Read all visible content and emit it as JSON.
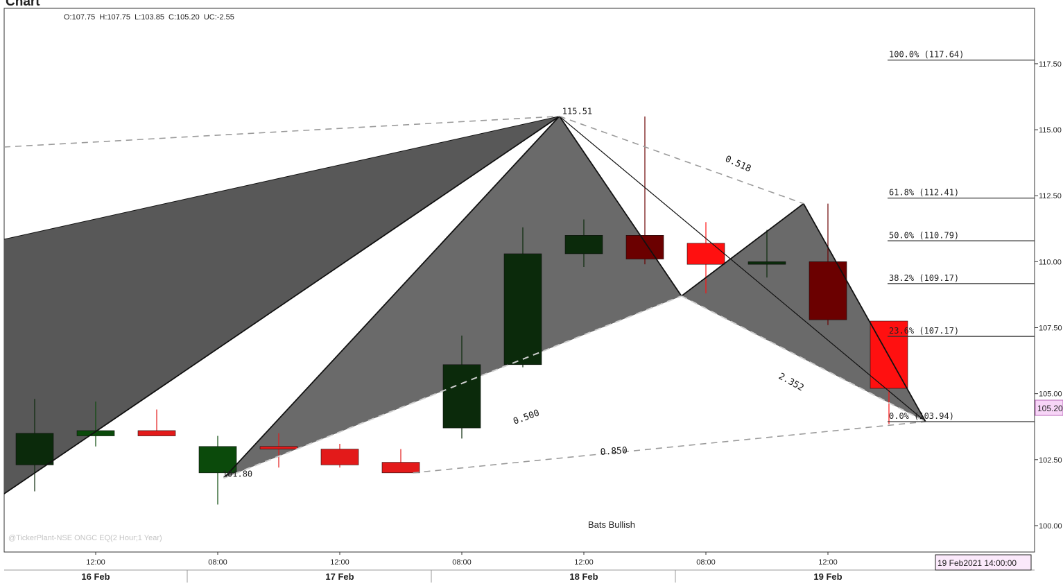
{
  "header": {
    "title": "Chart",
    "ohlc": "O:107.75  H:107.75  L:103.85  C:105.20  UC:-2.55"
  },
  "chart_data": {
    "type": "candlestick",
    "instrument_label": "@TickerPlant-NSE ONGC EQ(2 Hour;1 Year)",
    "pattern_label": "Bats Bullish",
    "current_price_label": "105.20",
    "date_box": "19 Feb2021 14:00:00",
    "ylim": [
      99.0,
      119.6
    ],
    "y_ticks": [
      "100.00",
      "102.50",
      "105.00",
      "107.50",
      "110.00",
      "112.50",
      "115.00",
      "117.50"
    ],
    "y_tick_values": [
      100,
      102.5,
      105,
      107.5,
      110,
      112.5,
      115,
      117.5
    ],
    "time_labels": [
      "12:00",
      "08:00",
      "12:00",
      "08:00",
      "12:00",
      "08:00",
      "12:00"
    ],
    "time_label_index": [
      1,
      3,
      5,
      7,
      9,
      11,
      13
    ],
    "day_labels": [
      "16 Feb",
      "17 Feb",
      "18 Feb",
      "19 Feb"
    ],
    "day_label_index": [
      1,
      5,
      9,
      13
    ],
    "day_separator_index": [
      2.5,
      6.5,
      10.5
    ],
    "candles": [
      {
        "o": 102.3,
        "h": 104.8,
        "l": 101.3,
        "c": 103.5,
        "color": "#0b2a0b"
      },
      {
        "o": 103.4,
        "h": 104.7,
        "l": 103.0,
        "c": 103.6,
        "color": "#0b4a0b"
      },
      {
        "o": 103.6,
        "h": 104.4,
        "l": 103.4,
        "c": 103.4,
        "color": "#e31a1a"
      },
      {
        "o": 102.0,
        "h": 103.4,
        "l": 100.8,
        "c": 103.0,
        "color": "#0b4a0b"
      },
      {
        "o": 103.0,
        "h": 103.5,
        "l": 102.2,
        "c": 102.9,
        "color": "#e31a1a"
      },
      {
        "o": 102.9,
        "h": 103.1,
        "l": 102.2,
        "c": 102.3,
        "color": "#e31a1a"
      },
      {
        "o": 102.4,
        "h": 102.9,
        "l": 102.0,
        "c": 102.0,
        "color": "#e31a1a"
      },
      {
        "o": 103.7,
        "h": 107.2,
        "l": 103.3,
        "c": 106.1,
        "color": "#0b2a0b"
      },
      {
        "o": 106.1,
        "h": 111.3,
        "l": 106.0,
        "c": 110.3,
        "color": "#0b2a0b"
      },
      {
        "o": 110.3,
        "h": 111.6,
        "l": 109.8,
        "c": 111.0,
        "color": "#0b2a0b"
      },
      {
        "o": 111.0,
        "h": 115.5,
        "l": 109.9,
        "c": 110.1,
        "color": "#6b0000"
      },
      {
        "o": 110.7,
        "h": 111.5,
        "l": 108.8,
        "c": 109.9,
        "color": "#ff1010"
      },
      {
        "o": 109.9,
        "h": 111.2,
        "l": 109.4,
        "c": 110.0,
        "color": "#0b2a0b"
      },
      {
        "o": 110.0,
        "h": 112.2,
        "l": 107.6,
        "c": 107.8,
        "color": "#6b0000"
      },
      {
        "o": 107.75,
        "h": 107.75,
        "l": 103.85,
        "c": 105.2,
        "color": "#ff1010"
      }
    ],
    "fib_levels": [
      {
        "label": "100.0% (117.64)",
        "value": 117.64
      },
      {
        "label": "61.8% (112.41)",
        "value": 112.41
      },
      {
        "label": "50.0% (110.79)",
        "value": 110.79
      },
      {
        "label": "38.2% (109.17)",
        "value": 109.17
      },
      {
        "label": "23.6% (107.17)",
        "value": 107.17
      },
      {
        "label": "0.0% (103.94)",
        "value": 103.94
      }
    ],
    "pattern_points": {
      "X": {
        "i": 3.1,
        "v": 101.8,
        "label": "101.80"
      },
      "A": {
        "i": 8.6,
        "v": 115.51,
        "label": "115.51"
      },
      "B": {
        "i": 10.6,
        "v": 108.7
      },
      "C": {
        "i": 12.6,
        "v": 112.2
      },
      "D": {
        "i": 14.6,
        "v": 103.94
      }
    },
    "ratios": [
      {
        "label": "0.518"
      },
      {
        "label": "0.500"
      },
      {
        "label": "2.352"
      },
      {
        "label": "0.850"
      }
    ]
  }
}
